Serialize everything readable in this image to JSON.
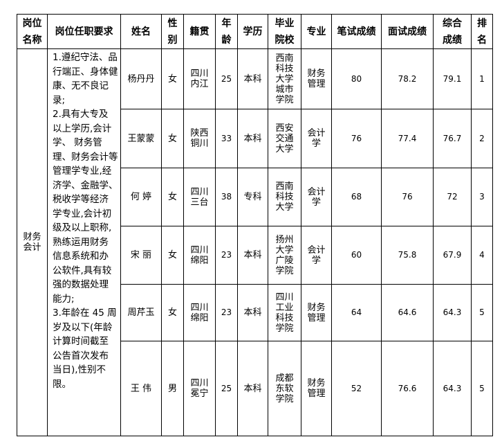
{
  "headers": [
    "岗位\n名称",
    "岗位任职要求",
    "姓名",
    "性\n别",
    "籍贯",
    "年\n龄",
    "学历",
    "毕业\n院校",
    "专业",
    "笔试成绩",
    "面试成绩",
    "综合\n成绩",
    "排\n名"
  ],
  "position": "财务\n会计",
  "requirements": "1.遵纪守法、品\n行端正、身体健\n康、无不良记\n录;\n2.具有大专及\n以上学历,会计\n学、  财务管\n理、财务会计等\n管理学专业,经\n济学、金融学、\n税收学等经济\n学专业,会计初\n级及以上职称,\n熟练运用财务\n信息系统和办\n公软件,具有较\n强的数据处理\n能力;\n3.年龄在 45 周\n岁及以下(年龄\n计算时间截至\n公告首次发布\n当日),性别不\n限。",
  "rows": [
    {
      "name": "杨丹丹",
      "gender": "女",
      "origin": "四川\n内江",
      "age": "25",
      "education": "本科",
      "school": "西南\n科技\n大学\n城市\n学院",
      "major": "财务\n管理",
      "written": "80",
      "interview": "78.2",
      "total": "79.1",
      "rank": "1"
    },
    {
      "name": "王蒙蒙",
      "gender": "女",
      "origin": "陕西\n铜川",
      "age": "33",
      "education": "本科",
      "school": "西安\n交通\n大学",
      "major": "会计\n学",
      "written": "76",
      "interview": "77.4",
      "total": "76.7",
      "rank": "2"
    },
    {
      "name": "何 婷",
      "gender": "女",
      "origin": "四川\n三台",
      "age": "38",
      "education": "专科",
      "school": "西南\n科技\n大学",
      "major": "会计\n学",
      "written": "68",
      "interview": "76",
      "total": "72",
      "rank": "3"
    },
    {
      "name": "宋 丽",
      "gender": "女",
      "origin": "四川\n绵阳",
      "age": "23",
      "education": "本科",
      "school": "扬州\n大学\n广陵\n学院",
      "major": "会计\n学",
      "written": "60",
      "interview": "75.8",
      "total": "67.9",
      "rank": "4"
    },
    {
      "name": "周芹玉",
      "gender": "女",
      "origin": "四川\n绵阳",
      "age": "23",
      "education": "本科",
      "school": "四川\n工业\n科技\n学院",
      "major": "财务\n管理",
      "written": "64",
      "interview": "64.6",
      "total": "64.3",
      "rank": "5"
    },
    {
      "name": "王 伟",
      "gender": "男",
      "origin": "四川\n冕宁",
      "age": "25",
      "education": "本科",
      "school": "成都\n东软\n学院",
      "major": "财务\n管理",
      "written": "52",
      "interview": "76.6",
      "total": "64.3",
      "rank": "5"
    }
  ]
}
